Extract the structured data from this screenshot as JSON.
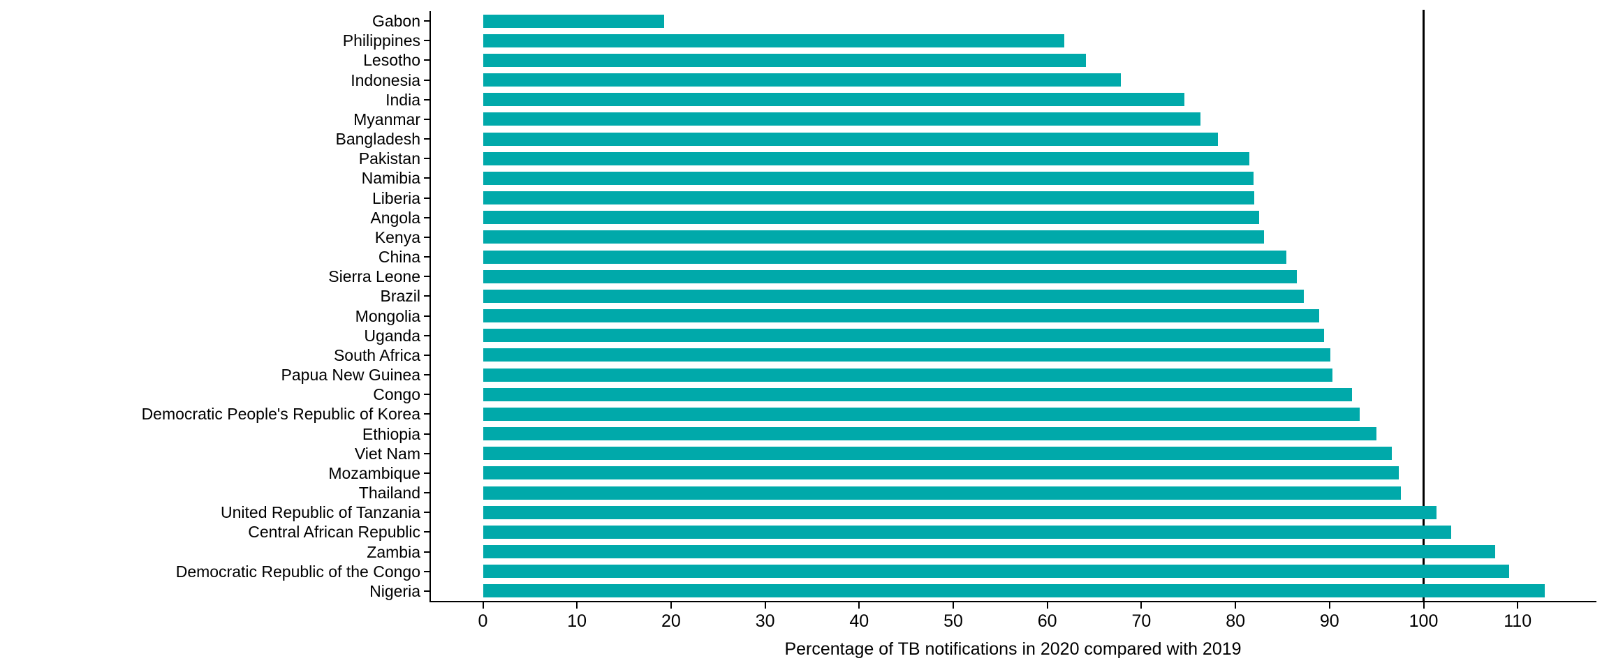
{
  "chart_data": {
    "type": "bar",
    "orientation": "horizontal",
    "xlabel": "Percentage of TB notifications in 2020 compared with 2019",
    "ylabel": "",
    "categories": [
      "Gabon",
      "Philippines",
      "Lesotho",
      "Indonesia",
      "India",
      "Myanmar",
      "Bangladesh",
      "Pakistan",
      "Namibia",
      "Liberia",
      "Angola",
      "Kenya",
      "China",
      "Sierra Leone",
      "Brazil",
      "Mongolia",
      "Uganda",
      "South Africa",
      "Papua New Guinea",
      "Congo",
      "Democratic People's Republic of Korea",
      "Ethiopia",
      "Viet Nam",
      "Mozambique",
      "Thailand",
      "United Republic of Tanzania",
      "Central African Republic",
      "Zambia",
      "Democratic Republic of the Congo",
      "Nigeria"
    ],
    "values": [
      19.3,
      61.8,
      64.1,
      67.8,
      74.6,
      76.3,
      78.1,
      81.5,
      81.9,
      82.0,
      82.5,
      83.0,
      85.4,
      86.5,
      87.3,
      88.9,
      89.4,
      90.1,
      90.3,
      92.4,
      93.2,
      95.0,
      96.6,
      97.4,
      97.6,
      101.4,
      102.9,
      107.6,
      109.1,
      112.9
    ],
    "x_ticks": [
      0,
      10,
      20,
      30,
      40,
      50,
      60,
      70,
      80,
      90,
      100,
      110
    ],
    "xlim": [
      0,
      118
    ],
    "reference_line_x": 100,
    "grid": false,
    "legend": "none",
    "bar_color": "#00A9AA",
    "axis_color": "#000000"
  }
}
